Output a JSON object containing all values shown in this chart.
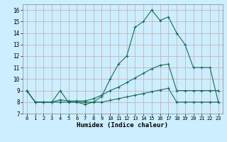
{
  "xlabel": "Humidex (Indice chaleur)",
  "bg_color": "#cceeff",
  "grid_color": "#c4aaaa",
  "line_color": "#1a6b5a",
  "xlim": [
    -0.5,
    23.5
  ],
  "ylim": [
    7,
    16.5
  ],
  "yticks": [
    7,
    8,
    9,
    10,
    11,
    12,
    13,
    14,
    15,
    16
  ],
  "xticks": [
    0,
    1,
    2,
    3,
    4,
    5,
    6,
    7,
    8,
    9,
    10,
    11,
    12,
    13,
    14,
    15,
    16,
    17,
    18,
    19,
    20,
    21,
    22,
    23
  ],
  "line1_x": [
    0,
    1,
    2,
    3,
    4,
    5,
    6,
    7,
    8,
    9,
    10,
    11,
    12,
    13,
    14,
    15,
    16,
    17,
    18,
    19,
    20,
    21,
    22,
    23
  ],
  "line1_y": [
    9,
    8,
    8,
    8,
    9,
    8,
    8,
    7.8,
    8,
    8.5,
    10,
    11.3,
    12,
    14.5,
    15,
    16,
    15.1,
    15.4,
    14,
    13,
    11,
    11,
    11,
    8
  ],
  "line2_x": [
    0,
    1,
    2,
    3,
    4,
    5,
    6,
    7,
    8,
    9,
    10,
    11,
    12,
    13,
    14,
    15,
    16,
    17,
    18,
    19,
    20,
    21,
    22,
    23
  ],
  "line2_y": [
    9,
    8,
    8,
    8,
    8.2,
    8.1,
    8.1,
    8.1,
    8.3,
    8.6,
    9.0,
    9.3,
    9.7,
    10.1,
    10.5,
    10.9,
    11.2,
    11.3,
    9,
    9,
    9,
    9,
    9,
    9
  ],
  "line3_x": [
    0,
    1,
    2,
    3,
    4,
    5,
    6,
    7,
    8,
    9,
    10,
    11,
    12,
    13,
    14,
    15,
    16,
    17,
    18,
    19,
    20,
    21,
    22,
    23
  ],
  "line3_y": [
    9,
    8,
    8,
    8,
    8,
    8,
    8,
    8,
    8,
    8,
    8.15,
    8.3,
    8.45,
    8.6,
    8.75,
    8.9,
    9.05,
    9.2,
    8,
    8,
    8,
    8,
    8,
    8
  ]
}
